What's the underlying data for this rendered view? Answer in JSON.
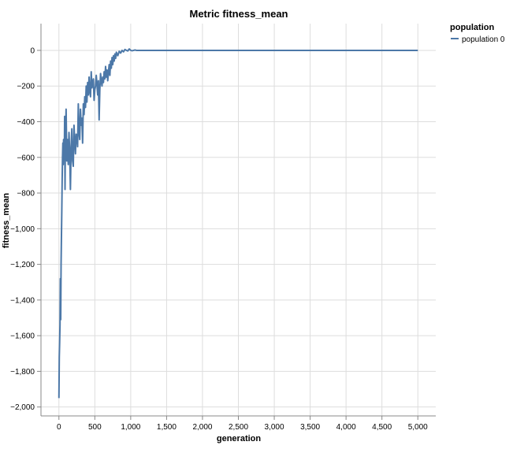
{
  "chart_data": {
    "type": "line",
    "title": "Metric fitness_mean",
    "xlabel": "generation",
    "ylabel": "fitness_mean",
    "xlim": [
      -250,
      5250
    ],
    "ylim": [
      -2050,
      150
    ],
    "x_ticks": [
      0,
      500,
      1000,
      1500,
      2000,
      2500,
      3000,
      3500,
      4000,
      4500,
      5000
    ],
    "x_tick_labels": [
      "0",
      "500",
      "1,000",
      "1,500",
      "2,000",
      "2,500",
      "3,000",
      "3,500",
      "4,000",
      "4,500",
      "5,000"
    ],
    "y_ticks": [
      0,
      -200,
      -400,
      -600,
      -800,
      -1000,
      -1200,
      -1400,
      -1600,
      -1800,
      -2000
    ],
    "y_tick_labels": [
      "0",
      "−200",
      "−400",
      "−600",
      "−800",
      "−1,000",
      "−1,200",
      "−1,400",
      "−1,600",
      "−1,800",
      "−2,000"
    ],
    "grid": true,
    "legend": {
      "title": "population",
      "position": "top-right"
    },
    "series": [
      {
        "name": "population 0",
        "color": "#4c78a8",
        "x": [
          0,
          5,
          10,
          15,
          20,
          25,
          30,
          35,
          40,
          45,
          50,
          55,
          60,
          65,
          70,
          75,
          80,
          85,
          90,
          95,
          100,
          110,
          120,
          130,
          140,
          150,
          160,
          170,
          180,
          190,
          200,
          210,
          220,
          230,
          240,
          250,
          260,
          270,
          280,
          290,
          300,
          310,
          320,
          330,
          340,
          350,
          360,
          370,
          380,
          390,
          400,
          410,
          420,
          430,
          440,
          450,
          460,
          470,
          480,
          490,
          500,
          510,
          520,
          530,
          540,
          550,
          560,
          570,
          580,
          590,
          600,
          610,
          620,
          630,
          640,
          650,
          660,
          670,
          680,
          690,
          700,
          710,
          720,
          730,
          740,
          750,
          760,
          770,
          780,
          790,
          800,
          820,
          840,
          860,
          880,
          900,
          920,
          940,
          960,
          980,
          1000,
          1020,
          1040,
          1060,
          1080,
          1100,
          1150,
          1200,
          1500,
          2000,
          2500,
          3000,
          3500,
          4000,
          4500,
          5000
        ],
        "y": [
          -1950,
          -1720,
          -1640,
          -1540,
          -1280,
          -1510,
          -1200,
          -1050,
          -900,
          -730,
          -600,
          -520,
          -640,
          -500,
          -560,
          -600,
          -370,
          -780,
          -500,
          -420,
          -330,
          -620,
          -500,
          -640,
          -460,
          -570,
          -780,
          -540,
          -440,
          -620,
          -650,
          -420,
          -510,
          -580,
          -470,
          -480,
          -540,
          -300,
          -460,
          -500,
          -330,
          -420,
          -380,
          -520,
          -300,
          -360,
          -260,
          -320,
          -200,
          -290,
          -180,
          -250,
          -150,
          -230,
          -260,
          -120,
          -210,
          -180,
          -160,
          -280,
          -220,
          -200,
          -140,
          -190,
          -250,
          -170,
          -390,
          -220,
          -130,
          -170,
          -200,
          -150,
          -180,
          -120,
          -160,
          -90,
          -150,
          -110,
          -170,
          -120,
          -80,
          -140,
          -60,
          -100,
          -40,
          -80,
          -30,
          -60,
          -20,
          -45,
          -10,
          -30,
          -5,
          -15,
          0,
          -8,
          5,
          0,
          -3,
          8,
          0,
          -2,
          0,
          2,
          0,
          0,
          0,
          0,
          0,
          0,
          0,
          0,
          0,
          0,
          0,
          0
        ]
      }
    ]
  }
}
